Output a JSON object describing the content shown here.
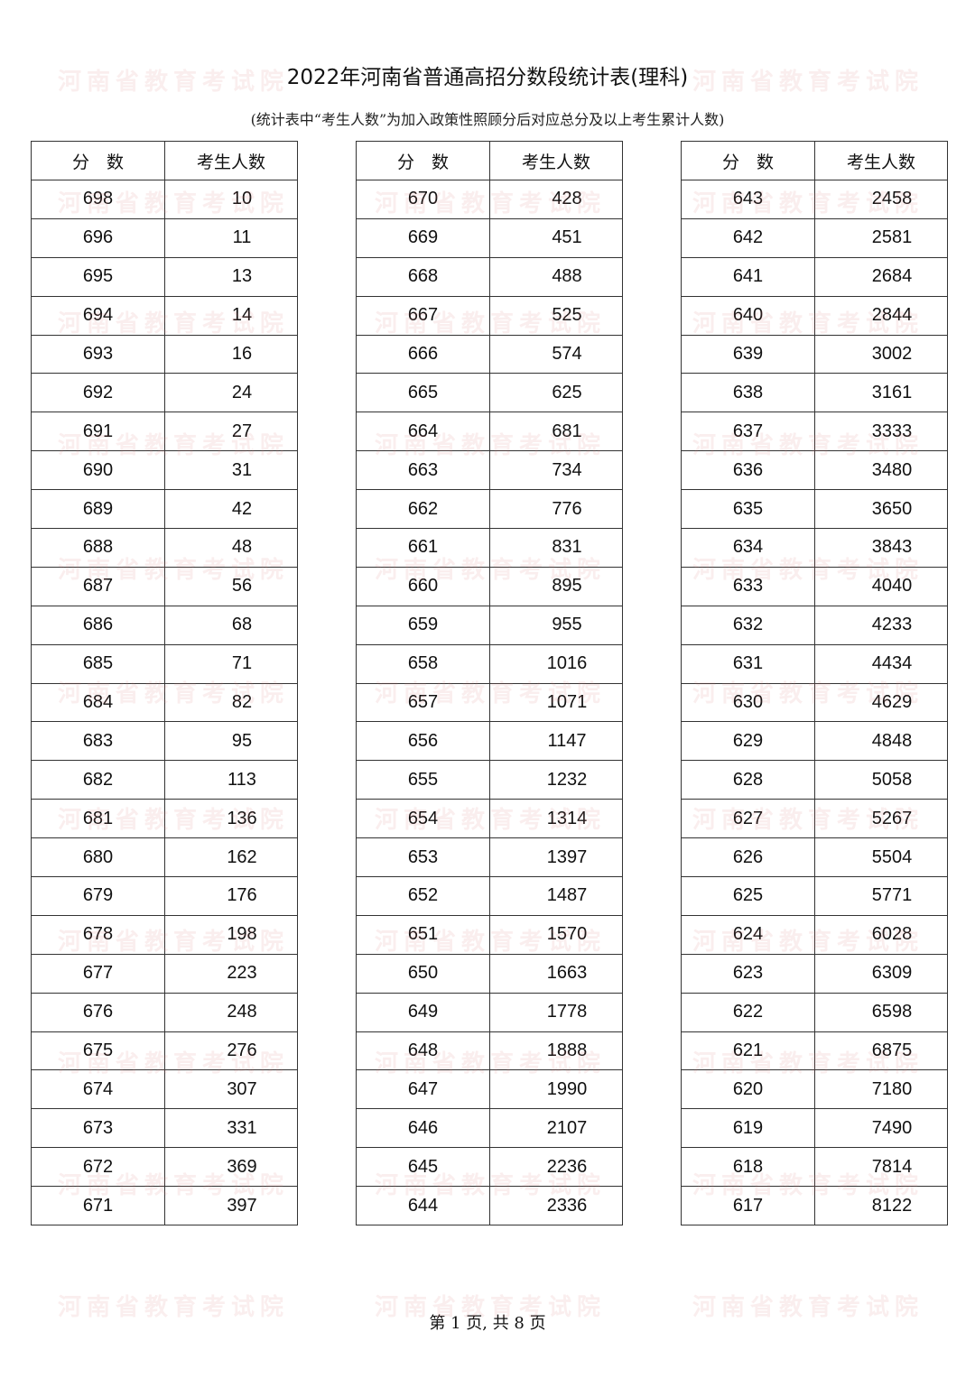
{
  "title": "2022年河南省普通高招分数段统计表(理科)",
  "subtitle": "(统计表中“考生人数”为加入政策性照顾分后对应总分及以上考生累计人数)",
  "headers": {
    "score": "分　数",
    "count": "考生人数"
  },
  "watermark": "河南省教育考试院",
  "tables": [
    {
      "rows": [
        [
          "698",
          "10"
        ],
        [
          "696",
          "11"
        ],
        [
          "695",
          "13"
        ],
        [
          "694",
          "14"
        ],
        [
          "693",
          "16"
        ],
        [
          "692",
          "24"
        ],
        [
          "691",
          "27"
        ],
        [
          "690",
          "31"
        ],
        [
          "689",
          "42"
        ],
        [
          "688",
          "48"
        ],
        [
          "687",
          "56"
        ],
        [
          "686",
          "68"
        ],
        [
          "685",
          "71"
        ],
        [
          "684",
          "82"
        ],
        [
          "683",
          "95"
        ],
        [
          "682",
          "113"
        ],
        [
          "681",
          "136"
        ],
        [
          "680",
          "162"
        ],
        [
          "679",
          "176"
        ],
        [
          "678",
          "198"
        ],
        [
          "677",
          "223"
        ],
        [
          "676",
          "248"
        ],
        [
          "675",
          "276"
        ],
        [
          "674",
          "307"
        ],
        [
          "673",
          "331"
        ],
        [
          "672",
          "369"
        ],
        [
          "671",
          "397"
        ]
      ]
    },
    {
      "rows": [
        [
          "670",
          "428"
        ],
        [
          "669",
          "451"
        ],
        [
          "668",
          "488"
        ],
        [
          "667",
          "525"
        ],
        [
          "666",
          "574"
        ],
        [
          "665",
          "625"
        ],
        [
          "664",
          "681"
        ],
        [
          "663",
          "734"
        ],
        [
          "662",
          "776"
        ],
        [
          "661",
          "831"
        ],
        [
          "660",
          "895"
        ],
        [
          "659",
          "955"
        ],
        [
          "658",
          "1016"
        ],
        [
          "657",
          "1071"
        ],
        [
          "656",
          "1147"
        ],
        [
          "655",
          "1232"
        ],
        [
          "654",
          "1314"
        ],
        [
          "653",
          "1397"
        ],
        [
          "652",
          "1487"
        ],
        [
          "651",
          "1570"
        ],
        [
          "650",
          "1663"
        ],
        [
          "649",
          "1778"
        ],
        [
          "648",
          "1888"
        ],
        [
          "647",
          "1990"
        ],
        [
          "646",
          "2107"
        ],
        [
          "645",
          "2236"
        ],
        [
          "644",
          "2336"
        ]
      ]
    },
    {
      "rows": [
        [
          "643",
          "2458"
        ],
        [
          "642",
          "2581"
        ],
        [
          "641",
          "2684"
        ],
        [
          "640",
          "2844"
        ],
        [
          "639",
          "3002"
        ],
        [
          "638",
          "3161"
        ],
        [
          "637",
          "3333"
        ],
        [
          "636",
          "3480"
        ],
        [
          "635",
          "3650"
        ],
        [
          "634",
          "3843"
        ],
        [
          "633",
          "4040"
        ],
        [
          "632",
          "4233"
        ],
        [
          "631",
          "4434"
        ],
        [
          "630",
          "4629"
        ],
        [
          "629",
          "4848"
        ],
        [
          "628",
          "5058"
        ],
        [
          "627",
          "5267"
        ],
        [
          "626",
          "5504"
        ],
        [
          "625",
          "5771"
        ],
        [
          "624",
          "6028"
        ],
        [
          "623",
          "6309"
        ],
        [
          "622",
          "6598"
        ],
        [
          "621",
          "6875"
        ],
        [
          "620",
          "7180"
        ],
        [
          "619",
          "7490"
        ],
        [
          "618",
          "7814"
        ],
        [
          "617",
          "8122"
        ]
      ]
    }
  ],
  "footer": "第 1 页, 共 8 页"
}
